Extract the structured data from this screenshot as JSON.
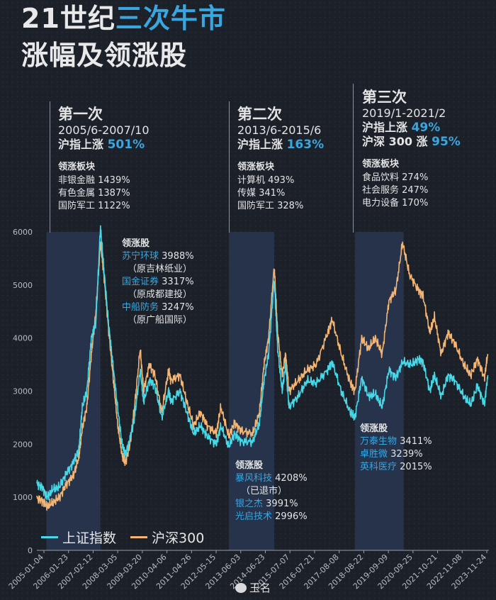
{
  "title": {
    "line1_prefix": "21世纪",
    "line1_highlight": "三次牛市",
    "line2": "涨幅及领涨股"
  },
  "colors": {
    "background": "#1b2029",
    "accent": "#3aa6e0",
    "sse": "#46d8e6",
    "csi300": "#f4b574",
    "highlight_band": "#2b3a55"
  },
  "phases": [
    {
      "name": "第一次",
      "range": "2005/6-2007/10",
      "rise_label": "沪指上涨",
      "rise_value": "501%",
      "sector_title": "领涨板块",
      "sectors": [
        "非银金融 1439%",
        "有色金属 1387%",
        "国防军工 1122%"
      ]
    },
    {
      "name": "第二次",
      "range": "2013/6-2015/6",
      "rise_label": "沪指上涨",
      "rise_value": "163%",
      "sector_title": "领涨板块",
      "sectors": [
        "计算机 493%",
        "传媒 341%",
        "国防军工 328%"
      ]
    },
    {
      "name": "第三次",
      "range": "2019/1-2021/2",
      "rise_label": "沪指上涨",
      "rise_value": "49%",
      "rise2_label": "沪深 300 涨",
      "rise2_value": "95%",
      "sector_title": "领涨板块",
      "sectors": [
        "食品饮料 274%",
        "社会服务 247%",
        "电力设备 170%"
      ]
    }
  ],
  "lead_stocks": [
    {
      "title": "领涨股",
      "items": [
        {
          "name": "苏宁环球",
          "value": "3988%",
          "note": "（原吉林纸业）"
        },
        {
          "name": "国金证券",
          "value": "3317%",
          "note": "（原成都建投）"
        },
        {
          "name": "中船防务",
          "value": "3247%",
          "note": "（原广船国际）"
        }
      ]
    },
    {
      "title": "领涨股",
      "items": [
        {
          "name": "暴风科技",
          "value": "4208%",
          "note": "（已退市）"
        },
        {
          "name": "银之杰",
          "value": "3991%"
        },
        {
          "name": "光启技术",
          "value": "2996%"
        }
      ]
    },
    {
      "title": "领涨股",
      "items": [
        {
          "name": "万泰生物",
          "value": "3411%"
        },
        {
          "name": "卓胜微",
          "value": "3239%"
        },
        {
          "name": "英科医疗",
          "value": "2015%"
        }
      ]
    }
  ],
  "watermark": "玉名",
  "chart_data": {
    "type": "line",
    "ylim": [
      0,
      6000
    ],
    "yticks": [
      0,
      1000,
      2000,
      3000,
      4000,
      5000,
      6000
    ],
    "xtick_labels": [
      "2005-01-04",
      "2006-01-23",
      "2007-02-12",
      "2008-03-05",
      "2009-03-20",
      "2010-04-06",
      "2011-04-26",
      "2012-05-15",
      "2013-06-03",
      "2014-06-23",
      "2015-07-07",
      "2016-07-21",
      "2017-08-08",
      "2018-08-22",
      "2019-09-09",
      "2020-09-25",
      "2021-10-21",
      "2022-11-08",
      "2023-11-24"
    ],
    "xlim": [
      2005.0,
      2024.9
    ],
    "highlight_periods": [
      [
        2005.42,
        2007.8
      ],
      [
        2013.45,
        2015.45
      ],
      [
        2019.0,
        2021.15
      ]
    ],
    "series": [
      {
        "name": "上证指数",
        "points": [
          [
            2005.0,
            1260
          ],
          [
            2005.25,
            1180
          ],
          [
            2005.45,
            1000
          ],
          [
            2005.7,
            1150
          ],
          [
            2006.0,
            1200
          ],
          [
            2006.3,
            1450
          ],
          [
            2006.6,
            1650
          ],
          [
            2006.85,
            1900
          ],
          [
            2007.0,
            2700
          ],
          [
            2007.2,
            3000
          ],
          [
            2007.4,
            4000
          ],
          [
            2007.6,
            4300
          ],
          [
            2007.8,
            6100
          ],
          [
            2007.95,
            5300
          ],
          [
            2008.15,
            4300
          ],
          [
            2008.35,
            3500
          ],
          [
            2008.55,
            2700
          ],
          [
            2008.75,
            2000
          ],
          [
            2008.9,
            1800
          ],
          [
            2009.1,
            2100
          ],
          [
            2009.3,
            2500
          ],
          [
            2009.55,
            3400
          ],
          [
            2009.7,
            2800
          ],
          [
            2009.95,
            3200
          ],
          [
            2010.2,
            3100
          ],
          [
            2010.5,
            2500
          ],
          [
            2010.8,
            3000
          ],
          [
            2010.9,
            2800
          ],
          [
            2011.3,
            3000
          ],
          [
            2011.6,
            2600
          ],
          [
            2011.9,
            2200
          ],
          [
            2012.2,
            2350
          ],
          [
            2012.5,
            2150
          ],
          [
            2012.9,
            2000
          ],
          [
            2013.1,
            2350
          ],
          [
            2013.45,
            1950
          ],
          [
            2013.7,
            2200
          ],
          [
            2014.0,
            2050
          ],
          [
            2014.5,
            2050
          ],
          [
            2014.8,
            2400
          ],
          [
            2015.0,
            3200
          ],
          [
            2015.2,
            3700
          ],
          [
            2015.45,
            5100
          ],
          [
            2015.6,
            3800
          ],
          [
            2015.8,
            3000
          ],
          [
            2015.95,
            3500
          ],
          [
            2016.1,
            2700
          ],
          [
            2016.5,
            2900
          ],
          [
            2016.9,
            3200
          ],
          [
            2017.3,
            3150
          ],
          [
            2017.8,
            3400
          ],
          [
            2018.0,
            3550
          ],
          [
            2018.4,
            3000
          ],
          [
            2018.8,
            2600
          ],
          [
            2019.0,
            2500
          ],
          [
            2019.3,
            3250
          ],
          [
            2019.6,
            2900
          ],
          [
            2019.9,
            2950
          ],
          [
            2020.2,
            2700
          ],
          [
            2020.5,
            3400
          ],
          [
            2020.8,
            3250
          ],
          [
            2021.1,
            3550
          ],
          [
            2021.5,
            3500
          ],
          [
            2021.8,
            3600
          ],
          [
            2022.0,
            3550
          ],
          [
            2022.3,
            3000
          ],
          [
            2022.5,
            3300
          ],
          [
            2022.8,
            2900
          ],
          [
            2023.1,
            3300
          ],
          [
            2023.4,
            3200
          ],
          [
            2023.8,
            2900
          ],
          [
            2024.1,
            2750
          ],
          [
            2024.4,
            3100
          ],
          [
            2024.7,
            2750
          ],
          [
            2024.85,
            3300
          ]
        ]
      },
      {
        "name": "沪深300",
        "points": [
          [
            2005.0,
            980
          ],
          [
            2005.25,
            930
          ],
          [
            2005.45,
            830
          ],
          [
            2005.7,
            900
          ],
          [
            2006.0,
            1000
          ],
          [
            2006.3,
            1250
          ],
          [
            2006.6,
            1400
          ],
          [
            2006.85,
            1750
          ],
          [
            2007.0,
            2300
          ],
          [
            2007.2,
            2700
          ],
          [
            2007.4,
            3700
          ],
          [
            2007.6,
            4500
          ],
          [
            2007.8,
            5800
          ],
          [
            2007.95,
            5200
          ],
          [
            2008.15,
            4200
          ],
          [
            2008.35,
            3300
          ],
          [
            2008.55,
            2400
          ],
          [
            2008.75,
            1800
          ],
          [
            2008.9,
            1650
          ],
          [
            2009.1,
            2000
          ],
          [
            2009.3,
            2700
          ],
          [
            2009.55,
            3800
          ],
          [
            2009.7,
            3000
          ],
          [
            2009.95,
            3500
          ],
          [
            2010.2,
            3300
          ],
          [
            2010.5,
            2600
          ],
          [
            2010.8,
            3400
          ],
          [
            2010.9,
            3200
          ],
          [
            2011.3,
            3300
          ],
          [
            2011.6,
            2800
          ],
          [
            2011.9,
            2350
          ],
          [
            2012.2,
            2600
          ],
          [
            2012.5,
            2350
          ],
          [
            2012.9,
            2200
          ],
          [
            2013.1,
            2700
          ],
          [
            2013.45,
            2150
          ],
          [
            2013.7,
            2400
          ],
          [
            2014.0,
            2250
          ],
          [
            2014.5,
            2200
          ],
          [
            2014.8,
            2600
          ],
          [
            2015.0,
            3500
          ],
          [
            2015.2,
            4000
          ],
          [
            2015.45,
            5350
          ],
          [
            2015.6,
            4100
          ],
          [
            2015.8,
            3300
          ],
          [
            2015.95,
            3700
          ],
          [
            2016.1,
            3000
          ],
          [
            2016.5,
            3200
          ],
          [
            2016.9,
            3400
          ],
          [
            2017.3,
            3500
          ],
          [
            2017.8,
            4100
          ],
          [
            2018.0,
            4350
          ],
          [
            2018.4,
            3700
          ],
          [
            2018.8,
            3150
          ],
          [
            2019.0,
            3000
          ],
          [
            2019.3,
            4000
          ],
          [
            2019.6,
            3800
          ],
          [
            2019.9,
            4000
          ],
          [
            2020.2,
            3700
          ],
          [
            2020.5,
            4700
          ],
          [
            2020.8,
            4900
          ],
          [
            2021.1,
            5800
          ],
          [
            2021.4,
            5200
          ],
          [
            2021.8,
            4900
          ],
          [
            2022.0,
            4800
          ],
          [
            2022.3,
            4100
          ],
          [
            2022.5,
            4400
          ],
          [
            2022.8,
            3700
          ],
          [
            2023.1,
            4100
          ],
          [
            2023.4,
            3900
          ],
          [
            2023.8,
            3500
          ],
          [
            2024.1,
            3300
          ],
          [
            2024.4,
            3600
          ],
          [
            2024.7,
            3250
          ],
          [
            2024.85,
            3700
          ]
        ]
      }
    ]
  }
}
